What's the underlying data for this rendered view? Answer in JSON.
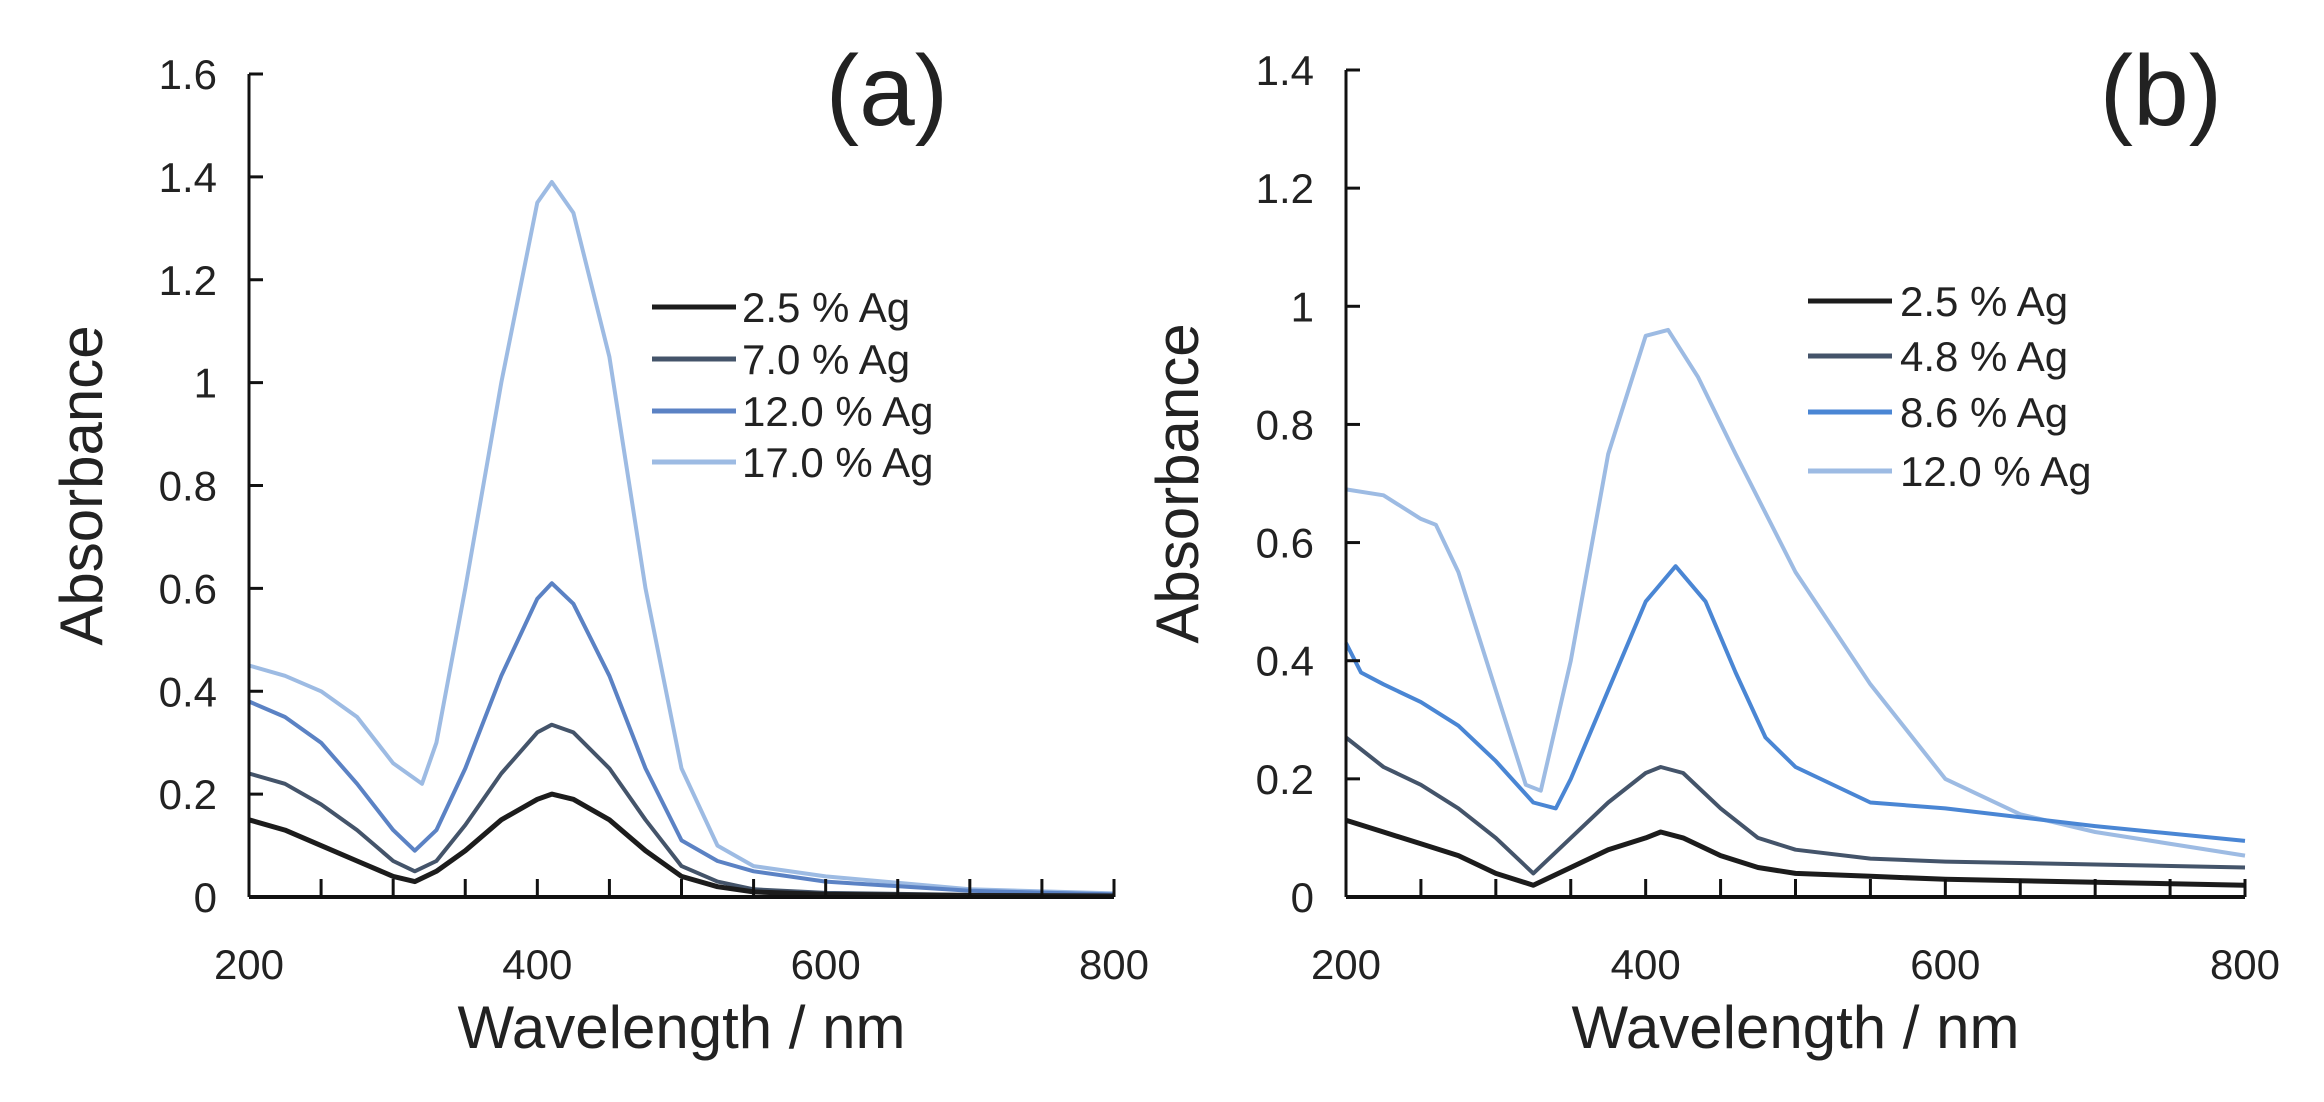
{
  "chart_data": [
    {
      "type": "line",
      "panel_label": "(a)",
      "xlabel": "Wavelength / nm",
      "ylabel": "Absorbance",
      "xlim": [
        200,
        800
      ],
      "ylim": [
        0,
        1.6
      ],
      "xticks": [
        200,
        400,
        600,
        800
      ],
      "yticks": [
        0,
        0.2,
        0.4,
        0.6,
        0.8,
        1,
        1.2,
        1.4,
        1.6
      ],
      "ytick_labels": [
        "0",
        "0.2",
        "0.4",
        "0.6",
        "0.8",
        "1",
        "1.2",
        "1.4",
        "1.6"
      ],
      "legend_position": "top-right",
      "grid": false,
      "series": [
        {
          "name": "2.5 % Ag",
          "color": "#1c1c1c",
          "x": [
            200,
            225,
            250,
            275,
            300,
            315,
            330,
            350,
            375,
            400,
            410,
            425,
            450,
            475,
            500,
            525,
            550,
            600,
            700,
            800
          ],
          "y": [
            0.15,
            0.13,
            0.1,
            0.07,
            0.04,
            0.03,
            0.05,
            0.09,
            0.15,
            0.19,
            0.2,
            0.19,
            0.15,
            0.09,
            0.04,
            0.02,
            0.01,
            0.005,
            0.003,
            0.002
          ]
        },
        {
          "name": "7.0 % Ag",
          "color": "#44546a",
          "x": [
            200,
            225,
            250,
            275,
            300,
            315,
            330,
            350,
            375,
            400,
            410,
            425,
            450,
            475,
            500,
            525,
            550,
            600,
            700,
            800
          ],
          "y": [
            0.24,
            0.22,
            0.18,
            0.13,
            0.07,
            0.05,
            0.07,
            0.14,
            0.24,
            0.32,
            0.335,
            0.32,
            0.25,
            0.15,
            0.06,
            0.03,
            0.015,
            0.008,
            0.004,
            0.003
          ]
        },
        {
          "name": "12.0 % Ag",
          "color": "#5b82c4",
          "x": [
            200,
            225,
            250,
            275,
            300,
            315,
            330,
            350,
            375,
            400,
            410,
            425,
            450,
            475,
            500,
            525,
            550,
            600,
            700,
            800
          ],
          "y": [
            0.38,
            0.35,
            0.3,
            0.22,
            0.13,
            0.09,
            0.13,
            0.25,
            0.43,
            0.58,
            0.61,
            0.57,
            0.43,
            0.25,
            0.11,
            0.07,
            0.05,
            0.03,
            0.012,
            0.005
          ]
        },
        {
          "name": "17.0 % Ag",
          "color": "#9dbbe3",
          "x": [
            200,
            225,
            250,
            275,
            300,
            320,
            330,
            350,
            375,
            400,
            410,
            425,
            450,
            475,
            500,
            525,
            550,
            600,
            700,
            800
          ],
          "y": [
            0.45,
            0.43,
            0.4,
            0.35,
            0.26,
            0.22,
            0.3,
            0.6,
            1.0,
            1.35,
            1.39,
            1.33,
            1.05,
            0.6,
            0.25,
            0.1,
            0.06,
            0.04,
            0.015,
            0.007
          ]
        }
      ]
    },
    {
      "type": "line",
      "panel_label": "(b)",
      "xlabel": "Wavelength / nm",
      "ylabel": "Absorbance",
      "xlim": [
        200,
        800
      ],
      "ylim": [
        0,
        1.4
      ],
      "xticks": [
        200,
        400,
        600,
        800
      ],
      "yticks": [
        0,
        0.2,
        0.4,
        0.6,
        0.8,
        1,
        1.2,
        1.4
      ],
      "ytick_labels": [
        "0",
        "0.2",
        "0.4",
        "0.6",
        "0.8",
        "1",
        "1.2",
        "1.4"
      ],
      "legend_position": "top-right",
      "grid": false,
      "series": [
        {
          "name": "2.5 % Ag",
          "color": "#1c1c1c",
          "x": [
            200,
            225,
            250,
            275,
            300,
            325,
            350,
            375,
            400,
            410,
            425,
            450,
            475,
            500,
            550,
            600,
            700,
            800
          ],
          "y": [
            0.13,
            0.11,
            0.09,
            0.07,
            0.04,
            0.02,
            0.05,
            0.08,
            0.1,
            0.11,
            0.1,
            0.07,
            0.05,
            0.04,
            0.035,
            0.03,
            0.025,
            0.02
          ]
        },
        {
          "name": "4.8 % Ag",
          "color": "#44546a",
          "x": [
            200,
            225,
            250,
            275,
            300,
            325,
            350,
            375,
            400,
            410,
            425,
            450,
            475,
            500,
            550,
            600,
            700,
            800
          ],
          "y": [
            0.27,
            0.22,
            0.19,
            0.15,
            0.1,
            0.04,
            0.1,
            0.16,
            0.21,
            0.22,
            0.21,
            0.15,
            0.1,
            0.08,
            0.065,
            0.06,
            0.055,
            0.05
          ]
        },
        {
          "name": "8.6 % Ag",
          "color": "#4a86d4",
          "x": [
            200,
            210,
            225,
            250,
            275,
            300,
            325,
            340,
            350,
            375,
            400,
            420,
            440,
            460,
            480,
            500,
            550,
            600,
            700,
            800
          ],
          "y": [
            0.43,
            0.38,
            0.36,
            0.33,
            0.29,
            0.23,
            0.16,
            0.15,
            0.2,
            0.35,
            0.5,
            0.56,
            0.5,
            0.38,
            0.27,
            0.22,
            0.16,
            0.15,
            0.12,
            0.095
          ]
        },
        {
          "name": "12.0 % Ag",
          "color": "#9dbbe3",
          "x": [
            200,
            225,
            250,
            260,
            275,
            300,
            320,
            330,
            350,
            375,
            400,
            415,
            435,
            460,
            500,
            550,
            600,
            650,
            700,
            800
          ],
          "y": [
            0.69,
            0.68,
            0.64,
            0.63,
            0.55,
            0.35,
            0.19,
            0.18,
            0.4,
            0.75,
            0.95,
            0.96,
            0.88,
            0.75,
            0.55,
            0.36,
            0.2,
            0.14,
            0.11,
            0.07
          ]
        }
      ]
    }
  ]
}
